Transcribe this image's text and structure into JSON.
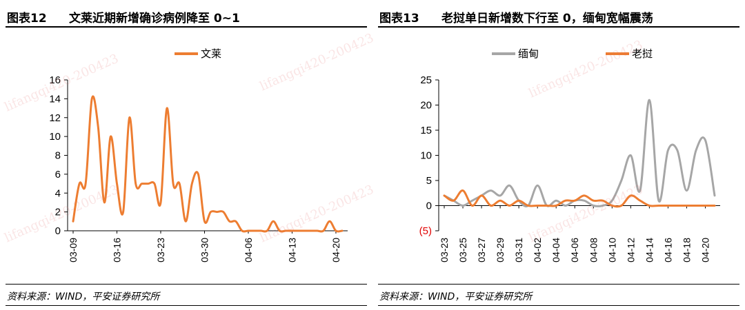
{
  "colors": {
    "orange": "#ED7D31",
    "gray": "#A6A6A6",
    "axis": "#000000",
    "negative": "#E00000"
  },
  "watermark_text": "lifangqi420-200423",
  "panels": [
    {
      "fig_num": "图表12",
      "title": "文莱近期新增确诊病例降至 0~1",
      "source": "资料来源：WIND，平安证券研究所"
    },
    {
      "fig_num": "图表13",
      "title": "老挝单日新增数下行至 0，缅甸宽幅震荡",
      "source": "资料来源：WIND，平安证券研究所"
    }
  ],
  "chart_data": [
    {
      "type": "line",
      "title": "",
      "xlabel": "",
      "ylabel": "",
      "ylim": [
        0,
        16
      ],
      "yticks": [
        0,
        2,
        4,
        6,
        8,
        10,
        12,
        14,
        16
      ],
      "x_tick_labels": [
        "03-09",
        "03-16",
        "03-23",
        "03-30",
        "04-06",
        "04-13",
        "04-20"
      ],
      "x": [
        "03-09",
        "03-10",
        "03-11",
        "03-12",
        "03-13",
        "03-14",
        "03-15",
        "03-16",
        "03-17",
        "03-18",
        "03-19",
        "03-20",
        "03-21",
        "03-22",
        "03-23",
        "03-24",
        "03-25",
        "03-26",
        "03-27",
        "03-28",
        "03-29",
        "03-30",
        "03-31",
        "04-01",
        "04-02",
        "04-03",
        "04-04",
        "04-05",
        "04-06",
        "04-07",
        "04-08",
        "04-09",
        "04-10",
        "04-11",
        "04-12",
        "04-13",
        "04-14",
        "04-15",
        "04-16",
        "04-17",
        "04-18",
        "04-19",
        "04-20",
        "04-21"
      ],
      "legend_position": "top",
      "grid": false,
      "series": [
        {
          "name": "文莱",
          "color": "#ED7D31",
          "values": [
            1,
            5,
            5,
            14,
            11,
            3,
            10,
            5,
            2,
            12,
            5,
            5,
            5,
            5,
            3,
            13,
            5,
            5,
            1,
            5,
            6,
            1,
            2,
            2,
            2,
            1,
            1,
            0,
            0,
            0,
            0,
            0,
            1,
            0,
            0,
            0,
            0,
            0,
            0,
            0,
            0,
            1,
            0,
            0
          ]
        }
      ]
    },
    {
      "type": "line",
      "title": "",
      "xlabel": "",
      "ylabel": "",
      "ylim": [
        -5,
        25
      ],
      "yticks": [
        -5,
        0,
        5,
        10,
        15,
        20,
        25
      ],
      "y_tick_labels": [
        "(5)",
        "0",
        "5",
        "10",
        "15",
        "20",
        "25"
      ],
      "x_tick_labels": [
        "03-23",
        "03-25",
        "03-27",
        "03-29",
        "03-31",
        "04-02",
        "04-04",
        "04-06",
        "04-08",
        "04-10",
        "04-12",
        "04-14",
        "04-16",
        "04-18",
        "04-20"
      ],
      "x": [
        "03-23",
        "03-24",
        "03-25",
        "03-26",
        "03-27",
        "03-28",
        "03-29",
        "03-30",
        "03-31",
        "04-01",
        "04-02",
        "04-03",
        "04-04",
        "04-05",
        "04-06",
        "04-07",
        "04-08",
        "04-09",
        "04-10",
        "04-11",
        "04-12",
        "04-13",
        "04-14",
        "04-15",
        "04-16",
        "04-17",
        "04-18",
        "04-19",
        "04-20",
        "04-21"
      ],
      "legend_position": "top",
      "grid": false,
      "series": [
        {
          "name": "缅甸",
          "color": "#A6A6A6",
          "values": [
            2,
            1,
            0,
            1,
            2,
            3,
            2,
            4,
            1,
            0,
            4,
            0,
            1,
            0,
            1,
            1,
            0,
            0,
            1,
            5,
            10,
            3,
            21,
            1,
            11,
            11,
            3,
            11,
            13,
            2
          ]
        },
        {
          "name": "老挝",
          "color": "#ED7D31",
          "values": [
            2,
            1,
            3,
            0,
            2,
            0,
            1,
            0,
            1,
            0,
            0,
            0,
            0,
            1,
            1,
            2,
            1,
            1,
            0,
            0,
            2,
            1,
            0,
            0,
            0,
            0,
            0,
            0,
            0,
            0
          ]
        }
      ]
    }
  ]
}
